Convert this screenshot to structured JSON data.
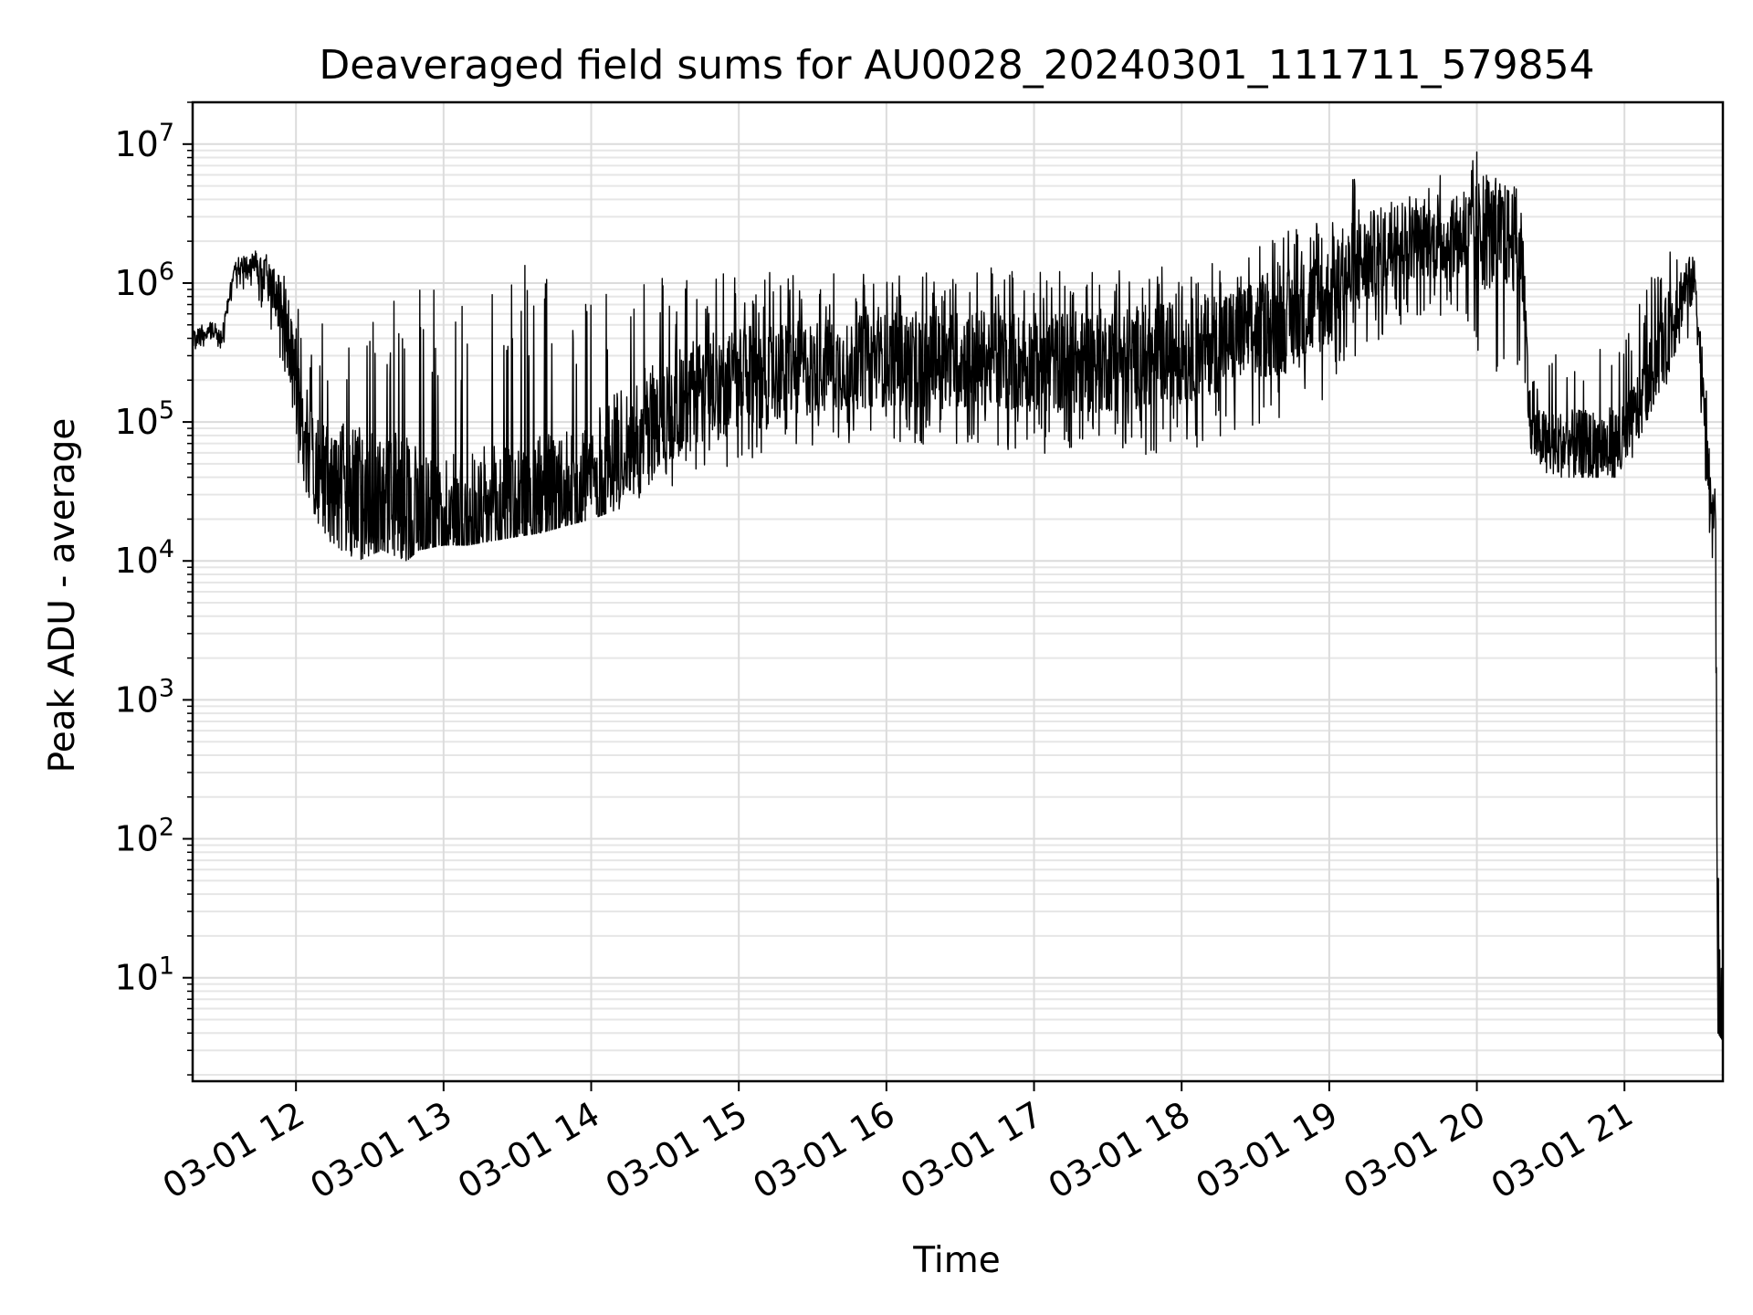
{
  "chart_data": {
    "type": "line",
    "title": "Deaveraged field sums for AU0028_20240301_111711_579854",
    "xlabel": "Time",
    "ylabel": "Peak ADU - average",
    "yscale": "log",
    "ylim": [
      1.8,
      20000000
    ],
    "xlim": [
      "2024-03-01 11:18",
      "2024-03-01 21:40"
    ],
    "grid": "major and minor on both axes",
    "line_color": "#000000",
    "x_ticks": [
      {
        "value": "2024-03-01 12:00",
        "label": "03-01 12"
      },
      {
        "value": "2024-03-01 13:00",
        "label": "03-01 13"
      },
      {
        "value": "2024-03-01 14:00",
        "label": "03-01 14"
      },
      {
        "value": "2024-03-01 15:00",
        "label": "03-01 15"
      },
      {
        "value": "2024-03-01 16:00",
        "label": "03-01 16"
      },
      {
        "value": "2024-03-01 17:00",
        "label": "03-01 17"
      },
      {
        "value": "2024-03-01 18:00",
        "label": "03-01 18"
      },
      {
        "value": "2024-03-01 19:00",
        "label": "03-01 19"
      },
      {
        "value": "2024-03-01 20:00",
        "label": "03-01 20"
      },
      {
        "value": "2024-03-01 21:00",
        "label": "03-01 21"
      }
    ],
    "y_ticks": [
      {
        "value": 10,
        "base": "10",
        "exp": "1"
      },
      {
        "value": 100,
        "base": "10",
        "exp": "2"
      },
      {
        "value": 1000,
        "base": "10",
        "exp": "3"
      },
      {
        "value": 10000,
        "base": "10",
        "exp": "4"
      },
      {
        "value": 100000,
        "base": "10",
        "exp": "5"
      },
      {
        "value": 1000000,
        "base": "10",
        "exp": "6"
      },
      {
        "value": 10000000,
        "base": "10",
        "exp": "7"
      }
    ],
    "series": [
      {
        "time": [
          "2024-03-01 11:18",
          "2024-03-01 11:25",
          "2024-03-01 11:30",
          "2024-03-01 11:35",
          "2024-03-01 11:42",
          "2024-03-01 11:48",
          "2024-03-01 11:55",
          "2024-03-01 12:00",
          "2024-03-01 12:06",
          "2024-03-01 12:15",
          "2024-03-01 12:25",
          "2024-03-01 12:35",
          "2024-03-01 12:45",
          "2024-03-01 12:50",
          "2024-03-01 13:00",
          "2024-03-01 13:10",
          "2024-03-01 13:20",
          "2024-03-01 13:30",
          "2024-03-01 13:40",
          "2024-03-01 13:50",
          "2024-03-01 14:00",
          "2024-03-01 14:15",
          "2024-03-01 14:30",
          "2024-03-01 14:45",
          "2024-03-01 15:00",
          "2024-03-01 15:20",
          "2024-03-01 15:40",
          "2024-03-01 16:00",
          "2024-03-01 16:20",
          "2024-03-01 16:40",
          "2024-03-01 17:00",
          "2024-03-01 17:20",
          "2024-03-01 17:40",
          "2024-03-01 18:00",
          "2024-03-01 18:15",
          "2024-03-01 18:30",
          "2024-03-01 18:45",
          "2024-03-01 19:00",
          "2024-03-01 19:10",
          "2024-03-01 19:20",
          "2024-03-01 19:30",
          "2024-03-01 19:40",
          "2024-03-01 19:50",
          "2024-03-01 20:00",
          "2024-03-01 20:10",
          "2024-03-01 20:18",
          "2024-03-01 20:22",
          "2024-03-01 20:30",
          "2024-03-01 20:45",
          "2024-03-01 21:00",
          "2024-03-01 21:10",
          "2024-03-01 21:20",
          "2024-03-01 21:25",
          "2024-03-01 21:29",
          "2024-03-01 21:30",
          "2024-03-01 21:33",
          "2024-03-01 21:35",
          "2024-03-01 21:37",
          "2024-03-01 21:38",
          "2024-03-01 21:40"
        ],
        "median": [
          380000,
          450000,
          400000,
          1300000,
          1300000,
          1100000,
          600000,
          200000,
          50000,
          35000,
          30000,
          28000,
          25000,
          22000,
          21000,
          20000,
          21000,
          22000,
          24000,
          28000,
          40000,
          70000,
          120000,
          170000,
          200000,
          230000,
          260000,
          280000,
          280000,
          280000,
          270000,
          270000,
          290000,
          320000,
          380000,
          450000,
          550000,
          800000,
          1200000,
          1700000,
          2000000,
          2000000,
          2000000,
          2200000,
          2200000,
          2000000,
          80000,
          70000,
          65000,
          70000,
          200000,
          550000,
          1000000,
          1000000,
          500000,
          60000,
          30000,
          20000,
          5,
          4
        ],
        "low": [
          300000,
          350000,
          320000,
          900000,
          800000,
          500000,
          200000,
          60000,
          20000,
          12000,
          10000,
          12000,
          10000,
          12000,
          13000,
          13000,
          14000,
          15000,
          16000,
          18000,
          20000,
          25000,
          30000,
          40000,
          50000,
          60000,
          70000,
          70000,
          65000,
          60000,
          60000,
          55000,
          55000,
          60000,
          70000,
          90000,
          100000,
          130000,
          250000,
          350000,
          500000,
          600000,
          500000,
          300000,
          200000,
          200000,
          40000,
          40000,
          40000,
          40000,
          100000,
          200000,
          400000,
          300000,
          100000,
          20000,
          10000,
          8000,
          4,
          3.5
        ],
        "high": [
          550000,
          550000,
          500000,
          1500000,
          1800000,
          1600000,
          1300000,
          800000,
          600000,
          500000,
          700000,
          700000,
          800000,
          1200000,
          800000,
          900000,
          1000000,
          1300000,
          1500000,
          1000000,
          900000,
          1000000,
          1100000,
          1200000,
          1200000,
          1200000,
          1200000,
          1200000,
          1200000,
          1300000,
          1200000,
          1300000,
          1300000,
          1400000,
          1500000,
          1800000,
          2500000,
          3000000,
          6000000,
          5000000,
          5000000,
          6000000,
          6000000,
          9000000,
          5000000,
          5000000,
          200000,
          300000,
          400000,
          400000,
          1000000,
          2600000,
          2000000,
          1500000,
          1000000,
          200000,
          80000,
          60000,
          60000,
          8
        ]
      }
    ]
  }
}
